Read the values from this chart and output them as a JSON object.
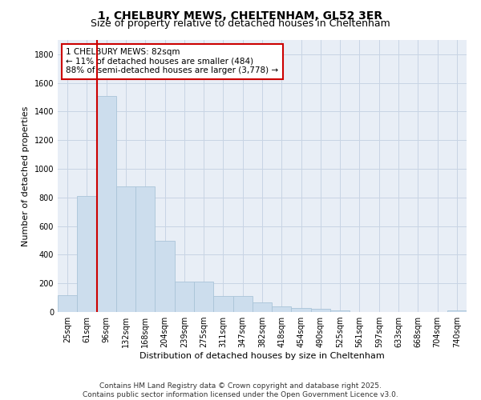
{
  "title1": "1, CHELBURY MEWS, CHELTENHAM, GL52 3ER",
  "title2": "Size of property relative to detached houses in Cheltenham",
  "xlabel": "Distribution of detached houses by size in Cheltenham",
  "ylabel": "Number of detached properties",
  "bar_labels": [
    "25sqm",
    "61sqm",
    "96sqm",
    "132sqm",
    "168sqm",
    "204sqm",
    "239sqm",
    "275sqm",
    "311sqm",
    "347sqm",
    "382sqm",
    "418sqm",
    "454sqm",
    "490sqm",
    "525sqm",
    "561sqm",
    "597sqm",
    "633sqm",
    "668sqm",
    "704sqm",
    "740sqm"
  ],
  "bar_values": [
    120,
    810,
    1510,
    880,
    880,
    500,
    215,
    215,
    110,
    110,
    65,
    40,
    30,
    20,
    10,
    0,
    0,
    0,
    0,
    0,
    10
  ],
  "bar_color": "#ccdded",
  "bar_edge_color": "#aac4d8",
  "vline_x": 1.5,
  "vline_color": "#cc0000",
  "annotation_text": "1 CHELBURY MEWS: 82sqm\n← 11% of detached houses are smaller (484)\n88% of semi-detached houses are larger (3,778) →",
  "annotation_box_color": "#ffffff",
  "annotation_box_edge": "#cc0000",
  "ylim": [
    0,
    1900
  ],
  "yticks": [
    0,
    200,
    400,
    600,
    800,
    1000,
    1200,
    1400,
    1600,
    1800
  ],
  "grid_color": "#c8d4e4",
  "bg_color": "#e8eef6",
  "footer": "Contains HM Land Registry data © Crown copyright and database right 2025.\nContains public sector information licensed under the Open Government Licence v3.0.",
  "title1_fontsize": 10,
  "title2_fontsize": 9,
  "xlabel_fontsize": 8,
  "ylabel_fontsize": 8,
  "tick_fontsize": 7,
  "annotation_fontsize": 7.5,
  "footer_fontsize": 6.5
}
